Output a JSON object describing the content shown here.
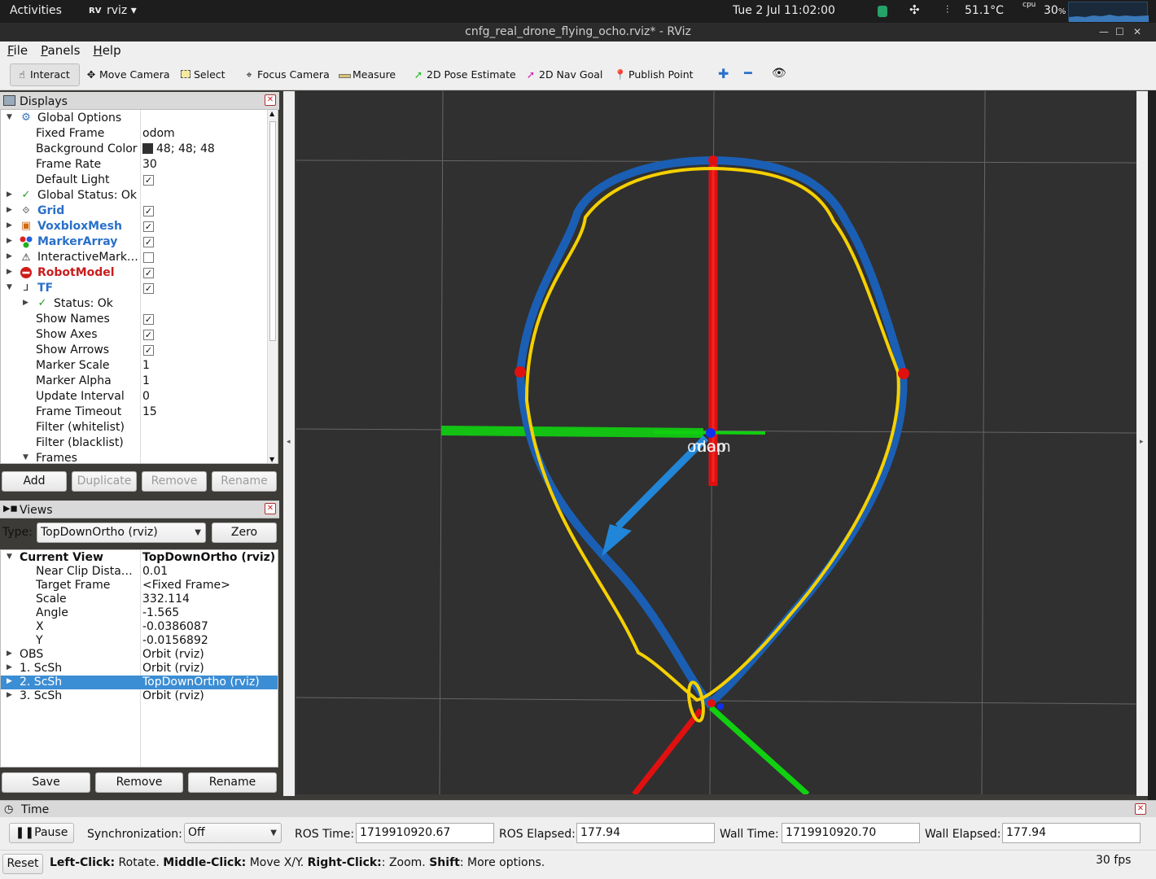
{
  "topbar": {
    "activities": "Activities",
    "app_name": "rviz",
    "app_logo": "RV",
    "datetime": "Tue 2 Jul  11:02:00",
    "temperature": "51.1°C",
    "cpu_label": "cpu",
    "cpu_value": "30",
    "cpu_unit": "%"
  },
  "window": {
    "title": "cnfg_real_drone_flying_ocho.rviz* - RViz"
  },
  "menu": {
    "file": "File",
    "panels": "Panels",
    "help": "Help"
  },
  "toolbar": {
    "interact": "Interact",
    "move_camera": "Move Camera",
    "select": "Select",
    "focus_camera": "Focus Camera",
    "measure": "Measure",
    "pose_estimate": "2D Pose Estimate",
    "nav_goal": "2D Nav Goal",
    "publish_point": "Publish Point"
  },
  "displays": {
    "title": "Displays",
    "rows": {
      "global_options": "Global Options",
      "fixed_frame": "Fixed Frame",
      "fixed_frame_val": "odom",
      "bg_color": "Background Color",
      "bg_color_val": "48; 48; 48",
      "frame_rate": "Frame Rate",
      "frame_rate_val": "30",
      "default_light": "Default Light",
      "global_status": "Global Status: Ok",
      "grid": "Grid",
      "voxblox": "VoxbloxMesh",
      "marker_array": "MarkerArray",
      "interactive": "InteractiveMark…",
      "robot_model": "RobotModel",
      "tf": "TF",
      "status_ok": "Status: Ok",
      "show_names": "Show Names",
      "show_axes": "Show Axes",
      "show_arrows": "Show Arrows",
      "marker_scale": "Marker Scale",
      "marker_scale_val": "1",
      "marker_alpha": "Marker Alpha",
      "marker_alpha_val": "1",
      "update_interval": "Update Interval",
      "update_interval_val": "0",
      "frame_timeout": "Frame Timeout",
      "frame_timeout_val": "15",
      "filter_white": "Filter (whitelist)",
      "filter_black": "Filter (blacklist)",
      "frames": "Frames"
    },
    "buttons": {
      "add": "Add",
      "duplicate": "Duplicate",
      "remove": "Remove",
      "rename": "Rename"
    }
  },
  "views": {
    "title": "Views",
    "type_label": "Type:",
    "type_value": "TopDownOrtho (rviz)",
    "zero": "Zero",
    "current_view": "Current View",
    "current_view_val": "TopDownOrtho (rviz)",
    "near_clip": "Near Clip Dista…",
    "near_clip_val": "0.01",
    "target_frame": "Target Frame",
    "target_frame_val": "<Fixed Frame>",
    "scale": "Scale",
    "scale_val": "332.114",
    "angle": "Angle",
    "angle_val": "-1.565",
    "x": "X",
    "x_val": "-0.0386087",
    "y": "Y",
    "y_val": "-0.0156892",
    "obs": "OBS",
    "obs_val": "Orbit (rviz)",
    "scsh1": "1. ScSh",
    "scsh1_val": "Orbit (rviz)",
    "scsh2": "2. ScSh",
    "scsh2_val": "TopDownOrtho (rviz)",
    "scsh3": "3. ScSh",
    "scsh3_val": "Orbit (rviz)",
    "buttons": {
      "save": "Save",
      "remove": "Remove",
      "rename": "Rename"
    }
  },
  "viewport": {
    "tf_label": "odom",
    "tf_label_overlap": "map",
    "bg_color": "#303030"
  },
  "time": {
    "title": "Time",
    "pause": "Pause",
    "sync_label": "Synchronization:",
    "sync_value": "Off",
    "ros_time_label": "ROS Time:",
    "ros_time": "1719910920.67",
    "ros_elapsed_label": "ROS Elapsed:",
    "ros_elapsed": "177.94",
    "wall_time_label": "Wall Time:",
    "wall_time": "1719910920.70",
    "wall_elapsed_label": "Wall Elapsed:",
    "wall_elapsed": "177.94"
  },
  "status": {
    "reset": "Reset",
    "left_click": "Left-Click:",
    "left_click_desc": " Rotate. ",
    "middle_click": "Middle-Click:",
    "middle_click_desc": " Move X/Y. ",
    "right_click": "Right-Click:",
    "right_click_desc": ": Zoom. ",
    "shift": "Shift",
    "shift_desc": ": More options.",
    "fps": "30 fps"
  }
}
